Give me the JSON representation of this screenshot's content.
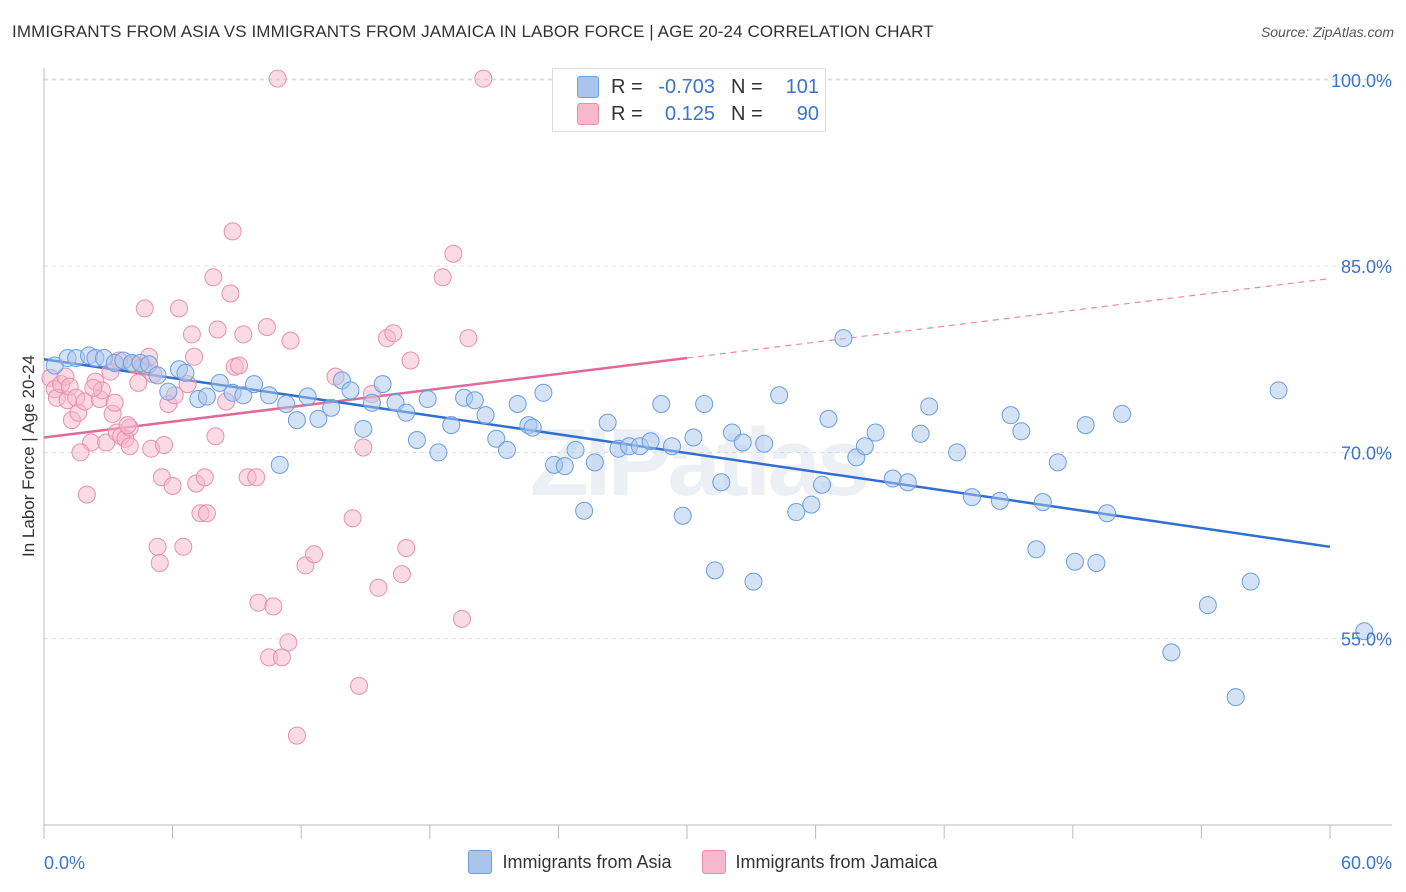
{
  "header": {
    "title": "IMMIGRANTS FROM ASIA VS IMMIGRANTS FROM JAMAICA IN LABOR FORCE | AGE 20-24 CORRELATION CHART",
    "source": "Source: ZipAtlas.com"
  },
  "stats": {
    "asia": {
      "r_label": "R =",
      "r_value": "-0.703",
      "n_label": "N =",
      "n_value": "101"
    },
    "jamaica": {
      "r_label": "R =",
      "r_value": "0.125",
      "n_label": "N =",
      "n_value": "90"
    }
  },
  "legend": {
    "asia": "Immigrants from Asia",
    "jamaica": "Immigrants from Jamaica"
  },
  "colors": {
    "asia_fill": "#a9c5ee",
    "asia_stroke": "#6a9ee0",
    "asia_line": "#2f6fd0",
    "jamaica_fill": "#f6b8cb",
    "jamaica_stroke": "#ea8fab",
    "jamaica_line": "#e0689a",
    "axis_label": "#3a73d0",
    "grid": "#dddddd"
  },
  "chart_data": {
    "type": "scatter",
    "xlabel": "",
    "ylabel": "In Labor Force | Age 20-24",
    "xlim": [
      0,
      60
    ],
    "ylim": [
      40,
      102
    ],
    "x_tick_labels": [
      "0.0%",
      "60.0%"
    ],
    "y_ticks": [
      55,
      70,
      85,
      100
    ],
    "y_tick_labels": [
      "55.0%",
      "70.0%",
      "85.0%",
      "100.0%"
    ],
    "grid": true,
    "legend_position": "bottom",
    "watermark": "ZIPatlas",
    "series": [
      {
        "name": "Immigrants from Asia",
        "r": -0.703,
        "n": 101,
        "trend": {
          "x": [
            0,
            60
          ],
          "y": [
            77.5,
            62.4
          ]
        },
        "points": [
          [
            0.5,
            77.0
          ],
          [
            1.1,
            77.6
          ],
          [
            1.5,
            77.6
          ],
          [
            2.1,
            77.8
          ],
          [
            2.4,
            77.6
          ],
          [
            2.8,
            77.6
          ],
          [
            3.3,
            77.2
          ],
          [
            3.7,
            77.4
          ],
          [
            4.1,
            77.2
          ],
          [
            4.5,
            77.2
          ],
          [
            4.9,
            77.1
          ],
          [
            5.3,
            76.2
          ],
          [
            5.8,
            74.9
          ],
          [
            6.3,
            76.7
          ],
          [
            6.6,
            76.4
          ],
          [
            7.2,
            74.3
          ],
          [
            7.6,
            74.5
          ],
          [
            8.2,
            75.6
          ],
          [
            8.8,
            74.8
          ],
          [
            9.3,
            74.6
          ],
          [
            9.8,
            75.5
          ],
          [
            10.5,
            74.6
          ],
          [
            11.0,
            69.0
          ],
          [
            11.3,
            73.9
          ],
          [
            11.8,
            72.6
          ],
          [
            12.3,
            74.5
          ],
          [
            12.8,
            72.7
          ],
          [
            13.4,
            73.6
          ],
          [
            13.9,
            75.8
          ],
          [
            14.3,
            75.0
          ],
          [
            14.9,
            71.9
          ],
          [
            15.3,
            74.0
          ],
          [
            15.8,
            75.5
          ],
          [
            16.4,
            74.0
          ],
          [
            16.9,
            73.2
          ],
          [
            17.4,
            71.0
          ],
          [
            17.9,
            74.3
          ],
          [
            18.4,
            70.0
          ],
          [
            19.0,
            72.2
          ],
          [
            19.6,
            74.4
          ],
          [
            20.1,
            74.2
          ],
          [
            20.6,
            73.0
          ],
          [
            21.1,
            71.1
          ],
          [
            21.6,
            70.2
          ],
          [
            22.1,
            73.9
          ],
          [
            22.6,
            72.2
          ],
          [
            22.8,
            72.0
          ],
          [
            23.3,
            74.8
          ],
          [
            23.8,
            69.0
          ],
          [
            24.3,
            68.9
          ],
          [
            24.8,
            70.2
          ],
          [
            25.2,
            65.3
          ],
          [
            25.7,
            69.2
          ],
          [
            26.3,
            72.4
          ],
          [
            26.8,
            70.3
          ],
          [
            27.3,
            70.5
          ],
          [
            27.8,
            70.5
          ],
          [
            28.3,
            70.9
          ],
          [
            28.8,
            73.9
          ],
          [
            29.3,
            70.5
          ],
          [
            29.8,
            64.9
          ],
          [
            30.3,
            71.2
          ],
          [
            30.8,
            73.9
          ],
          [
            31.3,
            60.5
          ],
          [
            31.6,
            67.6
          ],
          [
            32.1,
            71.6
          ],
          [
            32.6,
            70.8
          ],
          [
            33.1,
            59.6
          ],
          [
            33.6,
            70.7
          ],
          [
            34.3,
            74.6
          ],
          [
            35.1,
            65.2
          ],
          [
            35.8,
            65.8
          ],
          [
            36.3,
            67.4
          ],
          [
            36.6,
            72.7
          ],
          [
            37.3,
            79.2
          ],
          [
            37.9,
            69.6
          ],
          [
            38.3,
            70.5
          ],
          [
            38.8,
            71.6
          ],
          [
            39.6,
            67.9
          ],
          [
            40.3,
            67.6
          ],
          [
            40.9,
            71.5
          ],
          [
            41.3,
            73.7
          ],
          [
            42.6,
            70.0
          ],
          [
            43.3,
            66.4
          ],
          [
            44.6,
            66.1
          ],
          [
            45.1,
            73.0
          ],
          [
            45.6,
            71.7
          ],
          [
            46.3,
            62.2
          ],
          [
            46.6,
            66.0
          ],
          [
            47.3,
            69.2
          ],
          [
            48.1,
            61.2
          ],
          [
            48.6,
            72.2
          ],
          [
            49.1,
            61.1
          ],
          [
            49.6,
            65.1
          ],
          [
            50.3,
            73.1
          ],
          [
            52.6,
            53.9
          ],
          [
            54.3,
            57.7
          ],
          [
            55.6,
            50.3
          ],
          [
            56.3,
            59.6
          ],
          [
            57.6,
            75.0
          ],
          [
            61.6,
            55.6
          ]
        ]
      },
      {
        "name": "Immigrants from Jamaica",
        "r": 0.125,
        "n": 90,
        "trend": {
          "x": [
            0,
            30
          ],
          "y": [
            71.2,
            77.6
          ],
          "dashed_to": {
            "x": 60,
            "y": 84.0
          }
        },
        "points": [
          [
            0.3,
            76.0
          ],
          [
            0.5,
            75.1
          ],
          [
            0.6,
            74.4
          ],
          [
            0.8,
            75.5
          ],
          [
            1.0,
            76.1
          ],
          [
            1.1,
            74.2
          ],
          [
            1.2,
            75.3
          ],
          [
            1.3,
            72.6
          ],
          [
            1.5,
            74.4
          ],
          [
            1.6,
            73.2
          ],
          [
            1.9,
            74.1
          ],
          [
            2.0,
            66.6
          ],
          [
            2.2,
            70.8
          ],
          [
            2.4,
            75.7
          ],
          [
            2.6,
            74.3
          ],
          [
            2.7,
            75.0
          ],
          [
            2.9,
            70.8
          ],
          [
            3.1,
            76.5
          ],
          [
            3.2,
            73.1
          ],
          [
            3.3,
            74.0
          ],
          [
            3.4,
            71.6
          ],
          [
            3.5,
            77.4
          ],
          [
            3.6,
            71.3
          ],
          [
            3.8,
            71.1
          ],
          [
            4.0,
            70.5
          ],
          [
            4.0,
            72.0
          ],
          [
            4.2,
            77.1
          ],
          [
            4.4,
            75.6
          ],
          [
            4.6,
            76.9
          ],
          [
            4.7,
            81.6
          ],
          [
            4.9,
            77.7
          ],
          [
            5.0,
            70.3
          ],
          [
            5.1,
            76.3
          ],
          [
            5.3,
            62.4
          ],
          [
            5.4,
            61.1
          ],
          [
            5.5,
            68.0
          ],
          [
            5.6,
            70.6
          ],
          [
            5.8,
            73.9
          ],
          [
            6.0,
            67.3
          ],
          [
            6.3,
            81.6
          ],
          [
            6.5,
            62.4
          ],
          [
            6.7,
            75.5
          ],
          [
            6.9,
            79.5
          ],
          [
            7.0,
            77.7
          ],
          [
            7.1,
            67.5
          ],
          [
            7.3,
            65.1
          ],
          [
            7.5,
            68.0
          ],
          [
            7.6,
            65.1
          ],
          [
            7.9,
            84.1
          ],
          [
            8.0,
            71.3
          ],
          [
            8.1,
            79.9
          ],
          [
            8.5,
            74.1
          ],
          [
            8.7,
            82.8
          ],
          [
            8.8,
            87.8
          ],
          [
            8.9,
            76.9
          ],
          [
            9.1,
            77.0
          ],
          [
            9.3,
            79.5
          ],
          [
            9.5,
            68.0
          ],
          [
            9.9,
            68.0
          ],
          [
            10.0,
            57.9
          ],
          [
            10.4,
            80.1
          ],
          [
            10.5,
            53.5
          ],
          [
            10.7,
            57.6
          ],
          [
            10.9,
            100.1
          ],
          [
            11.1,
            53.5
          ],
          [
            11.4,
            54.7
          ],
          [
            11.5,
            79.0
          ],
          [
            11.8,
            47.2
          ],
          [
            12.2,
            60.9
          ],
          [
            12.6,
            61.8
          ],
          [
            13.6,
            76.1
          ],
          [
            14.4,
            64.7
          ],
          [
            14.7,
            51.2
          ],
          [
            14.9,
            70.4
          ],
          [
            15.3,
            74.7
          ],
          [
            15.6,
            59.1
          ],
          [
            16.0,
            79.2
          ],
          [
            16.3,
            79.6
          ],
          [
            16.7,
            60.2
          ],
          [
            16.9,
            62.3
          ],
          [
            17.1,
            77.4
          ],
          [
            18.6,
            84.1
          ],
          [
            19.1,
            86.0
          ],
          [
            19.5,
            56.6
          ],
          [
            19.8,
            79.2
          ],
          [
            20.5,
            100.1
          ],
          [
            3.9,
            72.2
          ],
          [
            2.3,
            75.2
          ],
          [
            6.1,
            74.6
          ],
          [
            1.7,
            70.0
          ]
        ]
      }
    ]
  }
}
